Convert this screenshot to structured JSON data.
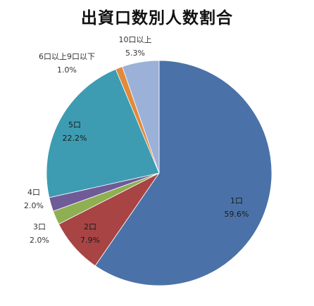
{
  "chart_data": {
    "type": "pie",
    "title": "出資口数別人数割合",
    "start": "top",
    "direction": "clockwise",
    "slices": [
      {
        "label": "1口",
        "value": 59.6,
        "value_label": "59.6%",
        "color": "#4A72A8"
      },
      {
        "label": "2口",
        "value": 7.9,
        "value_label": "7.9%",
        "color": "#A84444"
      },
      {
        "label": "3口",
        "value": 2.0,
        "value_label": "2.0%",
        "color": "#8EAF52"
      },
      {
        "label": "4口",
        "value": 2.0,
        "value_label": "2.0%",
        "color": "#6E5B98"
      },
      {
        "label": "5口",
        "value": 22.2,
        "value_label": "22.2%",
        "color": "#3D9CB1"
      },
      {
        "label": "6口以上9口以下",
        "value": 1.0,
        "value_label": "1.0%",
        "color": "#E08A3C"
      },
      {
        "label": "10口以上",
        "value": 5.3,
        "value_label": "5.3%",
        "color": "#9BB1D8"
      }
    ]
  }
}
